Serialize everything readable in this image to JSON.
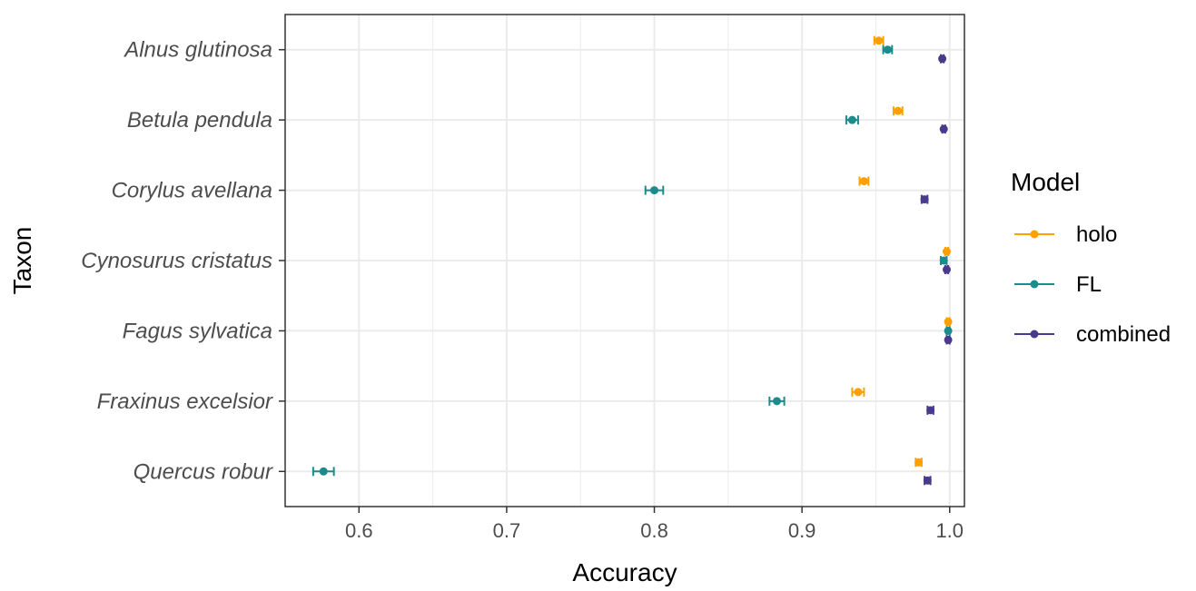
{
  "chart_data": {
    "type": "scatter",
    "orientation": "horizontal-dot-with-error-bars",
    "categories": [
      "Alnus glutinosa",
      "Betula pendula",
      "Corylus avellana",
      "Cynosurus cristatus",
      "Fagus sylvatica",
      "Fraxinus excelsior",
      "Quercus robur"
    ],
    "xlabel": "Accuracy",
    "ylabel": "Taxon",
    "xlim": [
      0.55,
      1.01
    ],
    "xticks": [
      0.6,
      0.7,
      0.8,
      0.9,
      1.0
    ],
    "xtick_labels": [
      "0.6",
      "0.7",
      "0.8",
      "0.9",
      "1.0"
    ],
    "grid": true,
    "legend": {
      "title": "Model",
      "placement": "right"
    },
    "series": [
      {
        "name": "holo",
        "color": "#FF9F00",
        "values": [
          0.952,
          0.965,
          0.942,
          0.998,
          0.999,
          0.938,
          0.979
        ],
        "err": [
          0.003,
          0.003,
          0.003,
          0.001,
          0.001,
          0.004,
          0.002
        ]
      },
      {
        "name": "FL",
        "color": "#1A8C8C",
        "values": [
          0.958,
          0.934,
          0.8,
          0.996,
          0.999,
          0.883,
          0.576
        ],
        "err": [
          0.003,
          0.004,
          0.006,
          0.002,
          0.001,
          0.005,
          0.007
        ]
      },
      {
        "name": "combined",
        "color": "#4A3A8C",
        "values": [
          0.995,
          0.996,
          0.983,
          0.998,
          0.999,
          0.987,
          0.985
        ],
        "err": [
          0.001,
          0.001,
          0.002,
          0.001,
          0.001,
          0.002,
          0.002
        ]
      }
    ]
  }
}
